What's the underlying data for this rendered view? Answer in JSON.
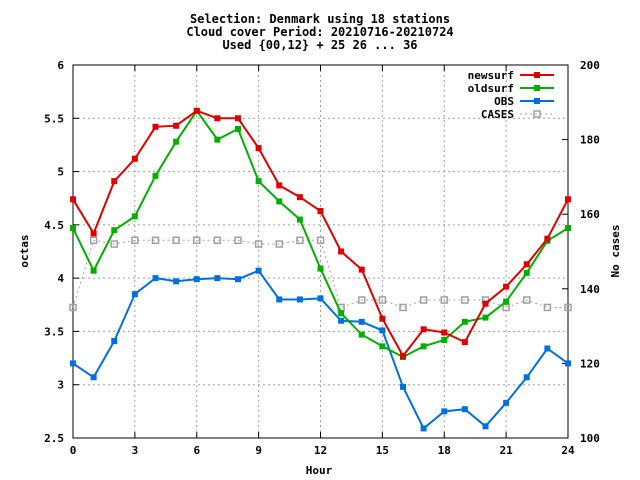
{
  "chart_data": {
    "type": "line",
    "title_lines": [
      "Selection: Denmark using    18 stations",
      "Cloud cover   Period: 20210716-20210724",
      "Used {00,12} + 25 26 ... 36"
    ],
    "xlabel": "Hour",
    "ylabel": "octas",
    "y2label": "No cases",
    "xlim": [
      0,
      24
    ],
    "ylim": [
      2.5,
      6
    ],
    "y2lim": [
      100,
      200
    ],
    "xticks": [
      0,
      3,
      6,
      9,
      12,
      15,
      18,
      21,
      24
    ],
    "yticks": [
      "2.5",
      "3",
      "3.5",
      "4",
      "4.5",
      "5",
      "5.5",
      "6"
    ],
    "y2ticks": [
      100,
      120,
      140,
      160,
      180,
      200
    ],
    "grid": true,
    "legend_position": "top-right",
    "x": [
      0,
      1,
      2,
      3,
      4,
      5,
      6,
      7,
      8,
      9,
      10,
      11,
      12,
      13,
      14,
      15,
      16,
      17,
      18,
      19,
      20,
      21,
      22,
      23,
      24
    ],
    "series": [
      {
        "name": "newsurf",
        "axis": "y",
        "color": "#e00000",
        "marker": "filled-square",
        "values": [
          4.74,
          4.42,
          4.91,
          5.12,
          5.42,
          5.43,
          5.57,
          5.5,
          5.5,
          5.22,
          4.87,
          4.76,
          4.63,
          4.25,
          4.08,
          3.62,
          3.27,
          3.52,
          3.49,
          3.4,
          3.76,
          3.92,
          4.13,
          4.37,
          4.74
        ]
      },
      {
        "name": "oldsurf",
        "axis": "y",
        "color": "#00b000",
        "marker": "filled-square",
        "values": [
          4.47,
          4.07,
          4.45,
          4.58,
          4.96,
          5.28,
          5.57,
          5.3,
          5.4,
          4.91,
          4.72,
          4.55,
          4.09,
          3.67,
          3.47,
          3.36,
          3.26,
          3.36,
          3.42,
          3.59,
          3.63,
          3.78,
          4.05,
          4.35,
          4.47
        ]
      },
      {
        "name": "OBS",
        "axis": "y",
        "color": "#0070e0",
        "marker": "filled-square",
        "values": [
          3.2,
          3.07,
          3.41,
          3.85,
          4.0,
          3.97,
          3.99,
          4.0,
          3.99,
          4.07,
          3.8,
          3.8,
          3.81,
          3.6,
          3.59,
          3.51,
          2.98,
          2.59,
          2.75,
          2.77,
          2.61,
          2.83,
          3.07,
          3.34,
          3.2
        ]
      },
      {
        "name": "CASES",
        "axis": "y2",
        "color": "#a0a0a0",
        "marker": "open-square",
        "values": [
          135,
          153,
          152,
          153,
          153,
          153,
          153,
          153,
          153,
          152,
          152,
          153,
          153,
          135,
          137,
          137,
          135,
          137,
          137,
          137,
          137,
          135,
          137,
          135,
          135
        ]
      }
    ]
  }
}
